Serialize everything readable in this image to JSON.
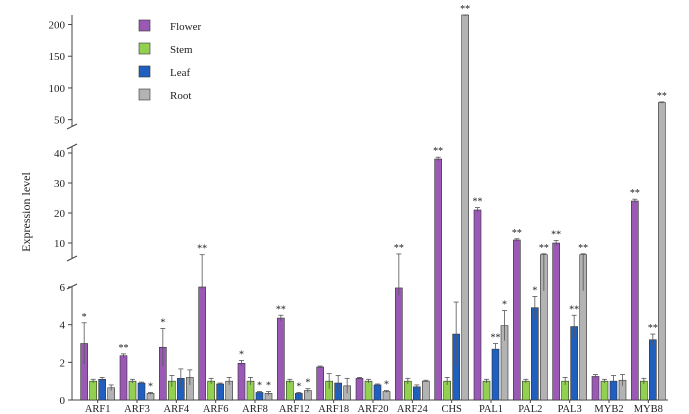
{
  "chart_data": {
    "type": "bar",
    "ylabel": "Expression level",
    "categories": [
      "ARF1",
      "ARF3",
      "ARF4",
      "ARF6",
      "ARF8",
      "ARF12",
      "ARF18",
      "ARF20",
      "ARF24",
      "CHS",
      "PAL1",
      "PAL2",
      "PAL3",
      "MYB2",
      "MYB8"
    ],
    "segments": [
      {
        "range": [
          0,
          6
        ],
        "ticks": [
          0,
          2,
          4,
          6
        ]
      },
      {
        "range": [
          5,
          42
        ],
        "ticks": [
          10,
          20,
          30,
          40
        ]
      },
      {
        "range": [
          40,
          215
        ],
        "ticks": [
          50,
          100,
          150,
          200
        ]
      }
    ],
    "series": [
      {
        "name": "Flower",
        "color": "#9b59b6",
        "values": [
          3.0,
          2.35,
          2.8,
          6.0,
          1.95,
          4.35,
          1.75,
          1.15,
          5.95,
          38.0,
          21.0,
          11.0,
          10.0,
          1.25,
          24.0
        ],
        "errors": [
          1.1,
          0.1,
          1.0,
          0.1,
          0.15,
          0.15,
          0.05,
          0.05,
          0.4,
          0.6,
          0.8,
          0.4,
          0.8,
          0.1,
          0.6
        ],
        "marks": [
          "*",
          "**",
          "*",
          "**",
          "*",
          "**",
          "",
          "",
          "**",
          "**",
          "**",
          "**",
          "**",
          "",
          "**"
        ]
      },
      {
        "name": "Stem",
        "color": "#92d050",
        "values": [
          1.0,
          1.0,
          1.0,
          1.0,
          1.0,
          1.0,
          1.0,
          1.0,
          1.0,
          1.0,
          1.0,
          1.0,
          1.0,
          1.0,
          1.0
        ],
        "errors": [
          0.1,
          0.1,
          0.3,
          0.15,
          0.2,
          0.1,
          0.4,
          0.1,
          0.15,
          0.2,
          0.1,
          0.1,
          0.2,
          0.1,
          0.15
        ],
        "marks": [
          "",
          "",
          "",
          "",
          "",
          "",
          "",
          "",
          "",
          "",
          "",
          "",
          "",
          "",
          ""
        ]
      },
      {
        "name": "Leaf",
        "color": "#1f5fbf",
        "values": [
          1.1,
          0.9,
          1.15,
          0.85,
          0.4,
          0.35,
          0.9,
          0.8,
          0.7,
          3.5,
          2.7,
          4.9,
          3.9,
          1.0,
          3.2
        ],
        "errors": [
          0.1,
          0.05,
          0.5,
          0.05,
          0.05,
          0.05,
          0.4,
          0.05,
          0.1,
          1.7,
          0.3,
          0.6,
          0.6,
          0.3,
          0.3
        ],
        "marks": [
          "",
          "",
          "",
          "",
          "*",
          "*",
          "",
          "",
          "",
          "",
          "**",
          "*",
          "**",
          "",
          "**"
        ]
      },
      {
        "name": "Root",
        "color": "#b3b3b3",
        "values": [
          0.65,
          0.35,
          1.2,
          1.0,
          0.35,
          0.5,
          0.75,
          0.45,
          1.0,
          215.0,
          3.95,
          6.1,
          6.1,
          1.05,
          77.0
        ],
        "errors": [
          0.15,
          0.05,
          0.4,
          0.2,
          0.1,
          0.1,
          0.4,
          0.05,
          0.05,
          1.5,
          0.8,
          0.3,
          0.3,
          0.3,
          1.0
        ],
        "marks": [
          "",
          "*",
          "",
          "",
          "*",
          "*",
          "",
          "*",
          "",
          "**",
          "*",
          "**",
          "**",
          "",
          "**"
        ]
      }
    ]
  }
}
